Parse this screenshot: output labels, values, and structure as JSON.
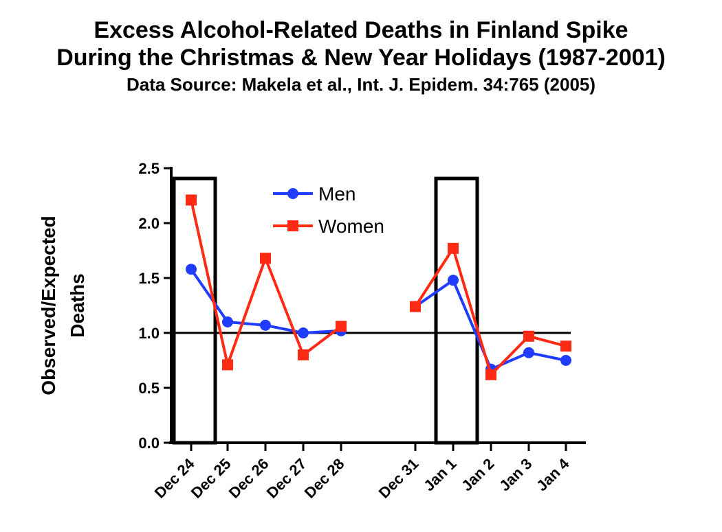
{
  "chart_data": {
    "type": "line",
    "title": "Excess Alcohol-Related Deaths in Finland Spike",
    "title_line2": "During the Christmas & New Year Holidays (1987-2001)",
    "subtitle": "Data Source: Makela et al., Int. J. Epidem. 34:765 (2005)",
    "ylabel_line1": "Observed/Expected",
    "ylabel_line2": "Deaths",
    "xlabel": "",
    "categories": [
      "Dec 24",
      "Dec 25",
      "Dec 26",
      "Dec 27",
      "Dec 28",
      "Dec 31",
      "Jan 1",
      "Jan 2",
      "Jan 3",
      "Jan 4"
    ],
    "ylim": [
      0,
      2.5
    ],
    "yticks": [
      "0.0",
      "0.5",
      "1.0",
      "1.5",
      "2.0",
      "2.5"
    ],
    "reference_line": 1.0,
    "highlighted_categories": [
      "Dec 24",
      "Jan 1"
    ],
    "grid": false,
    "legend_position": "top-center",
    "series": [
      {
        "name": "Men",
        "color": "#1f3cff",
        "marker": "circle",
        "segments": [
          [
            1.58,
            1.1,
            1.07,
            1.0,
            1.02
          ],
          [
            1.24,
            1.48,
            0.67,
            0.82,
            0.75
          ]
        ]
      },
      {
        "name": "Women",
        "color": "#ff2a14",
        "marker": "square",
        "segments": [
          [
            2.21,
            0.71,
            1.68,
            0.8,
            1.06
          ],
          [
            1.24,
            1.77,
            0.62,
            0.97,
            0.88
          ]
        ]
      }
    ]
  }
}
